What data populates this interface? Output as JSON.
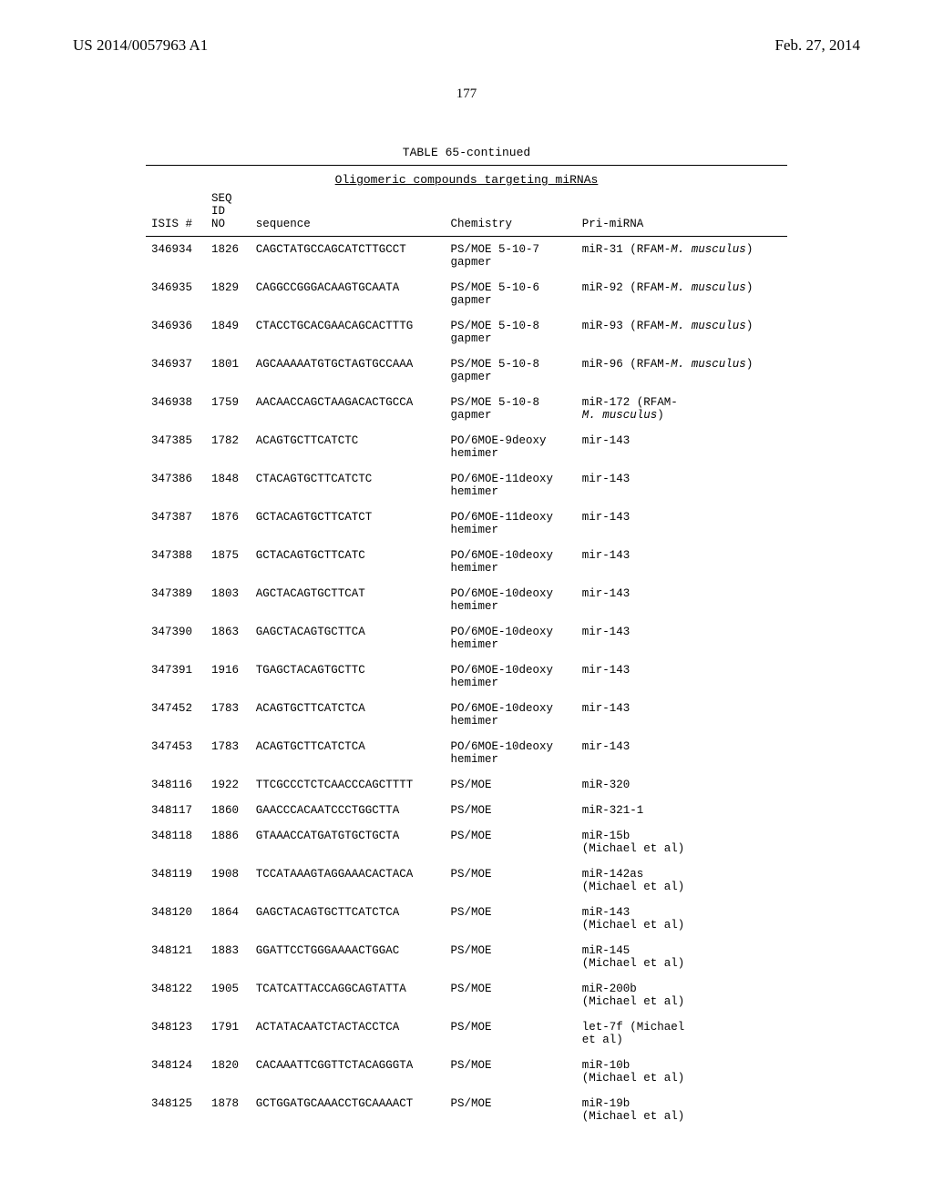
{
  "header": {
    "left": "US 2014/0057963 A1",
    "right": "Feb. 27, 2014",
    "page_number": "177"
  },
  "table": {
    "title": "TABLE 65-continued",
    "subtitle": "Oligomeric compounds targeting miRNAs",
    "columns": {
      "isis": "ISIS #",
      "seq": "SEQ\nID\nNO",
      "sequence": "sequence",
      "chemistry": "Chemistry",
      "primirna": "Pri-miRNA"
    },
    "rows": [
      {
        "isis": "346934",
        "seq": "1826",
        "sequence": "CAGCTATGCCAGCATCTTGCCT",
        "chem_l1": "PS/MOE 5-10-7",
        "chem_l2": "gapmer",
        "pri_l1": "miR-31 (RFAM-",
        "pri_l1_ital": "M. musculus",
        "pri_l1_close": ")",
        "pri_l2": ""
      },
      {
        "isis": "346935",
        "seq": "1829",
        "sequence": "CAGGCCGGGACAAGTGCAATA",
        "chem_l1": "PS/MOE 5-10-6",
        "chem_l2": "gapmer",
        "pri_l1": "miR-92 (RFAM-",
        "pri_l1_ital": "M. musculus",
        "pri_l1_close": ")",
        "pri_l2": ""
      },
      {
        "isis": "346936",
        "seq": "1849",
        "sequence": "CTACCTGCACGAACAGCACTTTG",
        "chem_l1": "PS/MOE 5-10-8",
        "chem_l2": "gapmer",
        "pri_l1": "miR-93 (RFAM-",
        "pri_l1_ital": "M. musculus",
        "pri_l1_close": ")",
        "pri_l2": ""
      },
      {
        "isis": "346937",
        "seq": "1801",
        "sequence": "AGCAAAAATGTGCTAGTGCCAAA",
        "chem_l1": "PS/MOE 5-10-8",
        "chem_l2": "gapmer",
        "pri_l1": "miR-96 (RFAM-",
        "pri_l1_ital": "M. musculus",
        "pri_l1_close": ")",
        "pri_l2": ""
      },
      {
        "isis": "346938",
        "seq": "1759",
        "sequence": "AACAACCAGCTAAGACACTGCCA",
        "chem_l1": "PS/MOE 5-10-8",
        "chem_l2": "gapmer",
        "pri_l1": "miR-172 (RFAM-",
        "pri_l1_ital": "",
        "pri_l1_close": "",
        "pri_l2_ital": "M. musculus",
        "pri_l2_close": ")"
      },
      {
        "isis": "347385",
        "seq": "1782",
        "sequence": "ACAGTGCTTCATCTC",
        "chem_l1": "PO/6MOE-9deoxy",
        "chem_l2": "hemimer",
        "pri_l1": "mir-143",
        "pri_l1_ital": "",
        "pri_l1_close": "",
        "pri_l2": ""
      },
      {
        "isis": "347386",
        "seq": "1848",
        "sequence": "CTACAGTGCTTCATCTC",
        "chem_l1": "PO/6MOE-11deoxy",
        "chem_l2": "hemimer",
        "pri_l1": "mir-143",
        "pri_l1_ital": "",
        "pri_l1_close": "",
        "pri_l2": ""
      },
      {
        "isis": "347387",
        "seq": "1876",
        "sequence": "GCTACAGTGCTTCATCT",
        "chem_l1": "PO/6MOE-11deoxy",
        "chem_l2": "hemimer",
        "pri_l1": "mir-143",
        "pri_l1_ital": "",
        "pri_l1_close": "",
        "pri_l2": ""
      },
      {
        "isis": "347388",
        "seq": "1875",
        "sequence": "GCTACAGTGCTTCATC",
        "chem_l1": "PO/6MOE-10deoxy",
        "chem_l2": "hemimer",
        "pri_l1": "mir-143",
        "pri_l1_ital": "",
        "pri_l1_close": "",
        "pri_l2": ""
      },
      {
        "isis": "347389",
        "seq": "1803",
        "sequence": "AGCTACAGTGCTTCAT",
        "chem_l1": "PO/6MOE-10deoxy",
        "chem_l2": "hemimer",
        "pri_l1": "mir-143",
        "pri_l1_ital": "",
        "pri_l1_close": "",
        "pri_l2": ""
      },
      {
        "isis": "347390",
        "seq": "1863",
        "sequence": "GAGCTACAGTGCTTCA",
        "chem_l1": "PO/6MOE-10deoxy",
        "chem_l2": "hemimer",
        "pri_l1": "mir-143",
        "pri_l1_ital": "",
        "pri_l1_close": "",
        "pri_l2": ""
      },
      {
        "isis": "347391",
        "seq": "1916",
        "sequence": "TGAGCTACAGTGCTTC",
        "chem_l1": "PO/6MOE-10deoxy",
        "chem_l2": "hemimer",
        "pri_l1": "mir-143",
        "pri_l1_ital": "",
        "pri_l1_close": "",
        "pri_l2": ""
      },
      {
        "isis": "347452",
        "seq": "1783",
        "sequence": "ACAGTGCTTCATCTCA",
        "chem_l1": "PO/6MOE-10deoxy",
        "chem_l2": "hemimer",
        "pri_l1": "mir-143",
        "pri_l1_ital": "",
        "pri_l1_close": "",
        "pri_l2": ""
      },
      {
        "isis": "347453",
        "seq": "1783",
        "sequence": "ACAGTGCTTCATCTCA",
        "chem_l1": "PO/6MOE-10deoxy",
        "chem_l2": "hemimer",
        "pri_l1": "mir-143",
        "pri_l1_ital": "",
        "pri_l1_close": "",
        "pri_l2": ""
      },
      {
        "isis": "348116",
        "seq": "1922",
        "sequence": "TTCGCCCTCTCAACCCAGCTTTT",
        "chem_l1": "PS/MOE",
        "chem_l2": "",
        "pri_l1": "miR-320",
        "pri_l1_ital": "",
        "pri_l1_close": "",
        "pri_l2": ""
      },
      {
        "isis": "348117",
        "seq": "1860",
        "sequence": "GAACCCACAATCCCTGGCTTA",
        "chem_l1": "PS/MOE",
        "chem_l2": "",
        "pri_l1": "miR-321-1",
        "pri_l1_ital": "",
        "pri_l1_close": "",
        "pri_l2": ""
      },
      {
        "isis": "348118",
        "seq": "1886",
        "sequence": "GTAAACCATGATGTGCTGCTA",
        "chem_l1": "PS/MOE",
        "chem_l2": "",
        "pri_l1": "miR-15b",
        "pri_l1_ital": "",
        "pri_l1_close": "",
        "pri_l2": "(Michael et al)"
      },
      {
        "isis": "348119",
        "seq": "1908",
        "sequence": "TCCATAAAGTAGGAAACACTACA",
        "chem_l1": "PS/MOE",
        "chem_l2": "",
        "pri_l1": "miR-142as",
        "pri_l1_ital": "",
        "pri_l1_close": "",
        "pri_l2": "(Michael et al)"
      },
      {
        "isis": "348120",
        "seq": "1864",
        "sequence": "GAGCTACAGTGCTTCATCTCA",
        "chem_l1": "PS/MOE",
        "chem_l2": "",
        "pri_l1": "miR-143",
        "pri_l1_ital": "",
        "pri_l1_close": "",
        "pri_l2": "(Michael et al)"
      },
      {
        "isis": "348121",
        "seq": "1883",
        "sequence": "GGATTCCTGGGAAAACTGGAC",
        "chem_l1": "PS/MOE",
        "chem_l2": "",
        "pri_l1": "miR-145",
        "pri_l1_ital": "",
        "pri_l1_close": "",
        "pri_l2": "(Michael et al)"
      },
      {
        "isis": "348122",
        "seq": "1905",
        "sequence": "TCATCATTACCAGGCAGTATTA",
        "chem_l1": "PS/MOE",
        "chem_l2": "",
        "pri_l1": "miR-200b",
        "pri_l1_ital": "",
        "pri_l1_close": "",
        "pri_l2": "(Michael et al)"
      },
      {
        "isis": "348123",
        "seq": "1791",
        "sequence": "ACTATACAATCTACTACCTCA",
        "chem_l1": "PS/MOE",
        "chem_l2": "",
        "pri_l1": "let-7f (Michael",
        "pri_l1_ital": "",
        "pri_l1_close": "",
        "pri_l2": "et al)"
      },
      {
        "isis": "348124",
        "seq": "1820",
        "sequence": "CACAAATTCGGTTCTACAGGGTA",
        "chem_l1": "PS/MOE",
        "chem_l2": "",
        "pri_l1": "miR-10b",
        "pri_l1_ital": "",
        "pri_l1_close": "",
        "pri_l2": "(Michael et al)"
      },
      {
        "isis": "348125",
        "seq": "1878",
        "sequence": "GCTGGATGCAAACCTGCAAAACT",
        "chem_l1": "PS/MOE",
        "chem_l2": "",
        "pri_l1": "miR-19b",
        "pri_l1_ital": "",
        "pri_l1_close": "",
        "pri_l2": "(Michael et al)"
      }
    ]
  }
}
